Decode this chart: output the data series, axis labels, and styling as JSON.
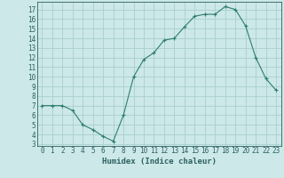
{
  "x": [
    0,
    1,
    2,
    3,
    4,
    5,
    6,
    7,
    8,
    9,
    10,
    11,
    12,
    13,
    14,
    15,
    16,
    17,
    18,
    19,
    20,
    21,
    22,
    23
  ],
  "y": [
    7.0,
    7.0,
    7.0,
    6.5,
    5.0,
    4.5,
    3.8,
    3.3,
    6.0,
    10.0,
    11.8,
    12.5,
    13.8,
    14.0,
    15.2,
    16.3,
    16.5,
    16.5,
    17.3,
    17.0,
    15.3,
    12.0,
    9.8,
    8.6
  ],
  "xlabel": "Humidex (Indice chaleur)",
  "xlim": [
    -0.5,
    23.5
  ],
  "ylim": [
    2.8,
    17.8
  ],
  "yticks": [
    3,
    4,
    5,
    6,
    7,
    8,
    9,
    10,
    11,
    12,
    13,
    14,
    15,
    16,
    17
  ],
  "xticks": [
    0,
    1,
    2,
    3,
    4,
    5,
    6,
    7,
    8,
    9,
    10,
    11,
    12,
    13,
    14,
    15,
    16,
    17,
    18,
    19,
    20,
    21,
    22,
    23
  ],
  "line_color": "#2d7d6e",
  "marker": "+",
  "bg_color": "#cce8e8",
  "grid_color": "#aacece",
  "label_color": "#2d6060",
  "tick_fontsize": 5.5,
  "xlabel_fontsize": 6.5
}
